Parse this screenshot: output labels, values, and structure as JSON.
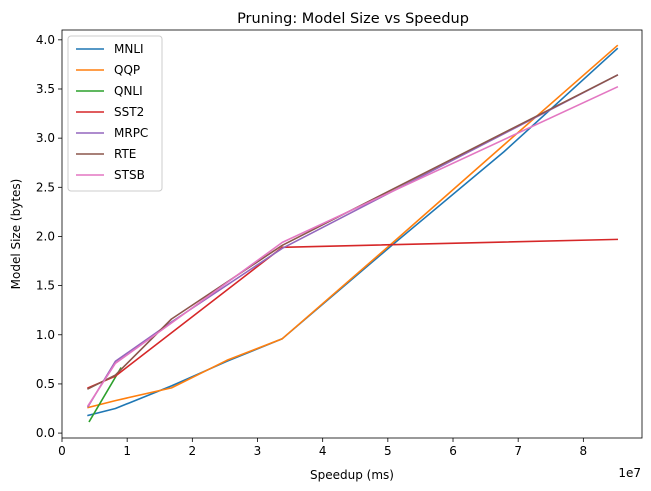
{
  "chart_data": {
    "type": "line",
    "title": "Pruning: Model Size vs Speedup",
    "xlabel": "Speedup (ms)",
    "ylabel": "Model Size (bytes)",
    "x_offset_text": "1e7",
    "xlim": [
      0,
      89000000
    ],
    "ylim": [
      -0.05,
      4.1
    ],
    "xticks": [
      0,
      10000000,
      20000000,
      30000000,
      40000000,
      50000000,
      60000000,
      70000000,
      80000000
    ],
    "xtick_labels": [
      "0",
      "1",
      "2",
      "3",
      "4",
      "5",
      "6",
      "7",
      "8"
    ],
    "yticks": [
      0.0,
      0.5,
      1.0,
      1.5,
      2.0,
      2.5,
      3.0,
      3.5,
      4.0
    ],
    "ytick_labels": [
      "0.0",
      "0.5",
      "1.0",
      "1.5",
      "2.0",
      "2.5",
      "3.0",
      "3.5",
      "4.0"
    ],
    "grid": false,
    "legend_position": "top-left",
    "series": [
      {
        "name": "MNLI",
        "color": "#1f77b4",
        "x": [
          4000000,
          8200000,
          16800000,
          25300000,
          33800000,
          50800000,
          67800000,
          85200000
        ],
        "y": [
          0.18,
          0.25,
          0.48,
          0.73,
          0.96,
          1.92,
          2.86,
          3.91
        ]
      },
      {
        "name": "QQP",
        "color": "#ff7f0e",
        "x": [
          4000000,
          8200000,
          16800000,
          25300000,
          33800000,
          50800000,
          67800000,
          85200000
        ],
        "y": [
          0.26,
          0.33,
          0.46,
          0.74,
          0.96,
          1.94,
          2.93,
          3.94
        ]
      },
      {
        "name": "QNLI",
        "color": "#2ca02c",
        "x": [
          4200000,
          9000000
        ],
        "y": [
          0.12,
          0.66
        ]
      },
      {
        "name": "SST2",
        "color": "#d62728",
        "x": [
          4000000,
          8200000,
          33800000,
          85200000
        ],
        "y": [
          0.46,
          0.58,
          1.89,
          1.97
        ]
      },
      {
        "name": "MRPC",
        "color": "#9467bd",
        "x": [
          4000000,
          8200000,
          16800000,
          33800000,
          85200000
        ],
        "y": [
          0.27,
          0.73,
          1.13,
          1.88,
          3.64
        ]
      },
      {
        "name": "RTE",
        "color": "#8c564b",
        "x": [
          4000000,
          8200000,
          16800000,
          33800000,
          85200000
        ],
        "y": [
          0.45,
          0.59,
          1.16,
          1.91,
          3.64
        ]
      },
      {
        "name": "STSB",
        "color": "#e377c2",
        "x": [
          4000000,
          8200000,
          16800000,
          33800000,
          85200000
        ],
        "y": [
          0.28,
          0.71,
          1.12,
          1.94,
          3.52
        ]
      }
    ]
  }
}
